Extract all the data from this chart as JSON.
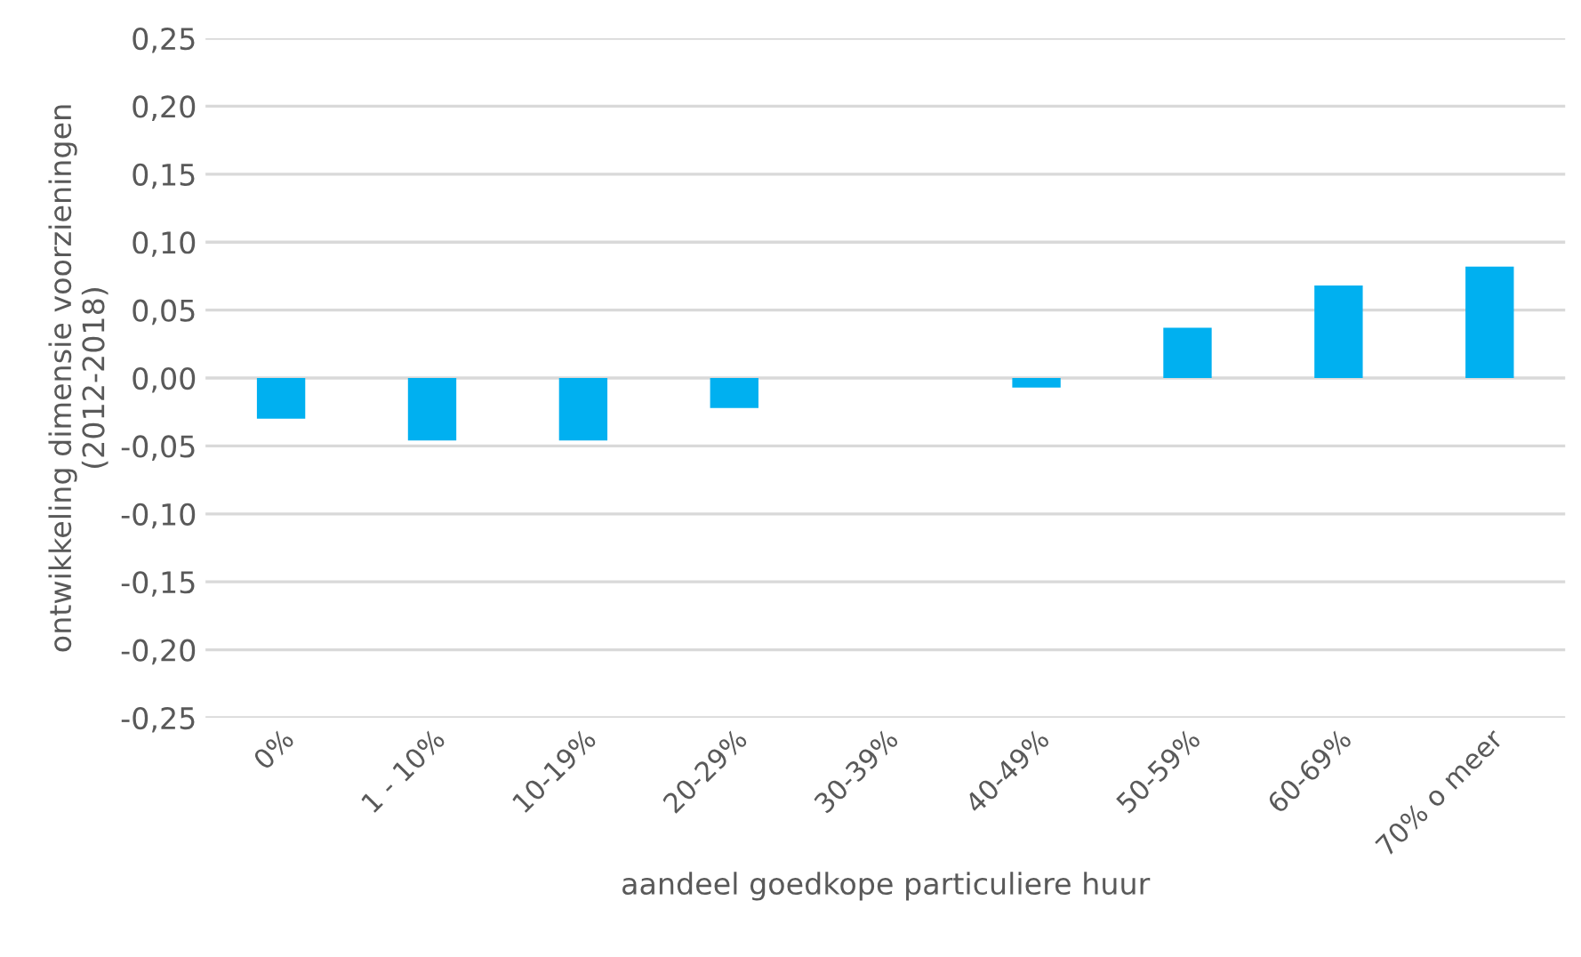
{
  "chart_data": {
    "type": "bar",
    "xlabel": "aandeel goedkope particuliere huur",
    "ylabel": "ontwikkeling dimensie voorzieningen\n(2012-2018)",
    "categories": [
      "0%",
      "1 - 10%",
      "10-19%",
      "20-29%",
      "30-39%",
      "40-49%",
      "50-59%",
      "60-69%",
      "70% o meer"
    ],
    "values": [
      -0.03,
      -0.046,
      -0.046,
      -0.022,
      null,
      -0.007,
      0.037,
      0.068,
      0.082
    ],
    "color": "#00b0f0",
    "ylim": [
      -0.25,
      0.25
    ],
    "yticks": [
      {
        "value": -0.25,
        "label": "-0,25"
      },
      {
        "value": -0.2,
        "label": "-0,20"
      },
      {
        "value": -0.15,
        "label": "-0,15"
      },
      {
        "value": -0.1,
        "label": "-0,10"
      },
      {
        "value": -0.05,
        "label": "-0,05"
      },
      {
        "value": 0,
        "label": "0,00"
      },
      {
        "value": 0.05,
        "label": "0,05"
      },
      {
        "value": 0.1,
        "label": "0,10"
      },
      {
        "value": 0.15,
        "label": "0,15"
      },
      {
        "value": 0.2,
        "label": "0,20"
      },
      {
        "value": 0.25,
        "label": "0,25"
      }
    ],
    "grid": "y"
  }
}
